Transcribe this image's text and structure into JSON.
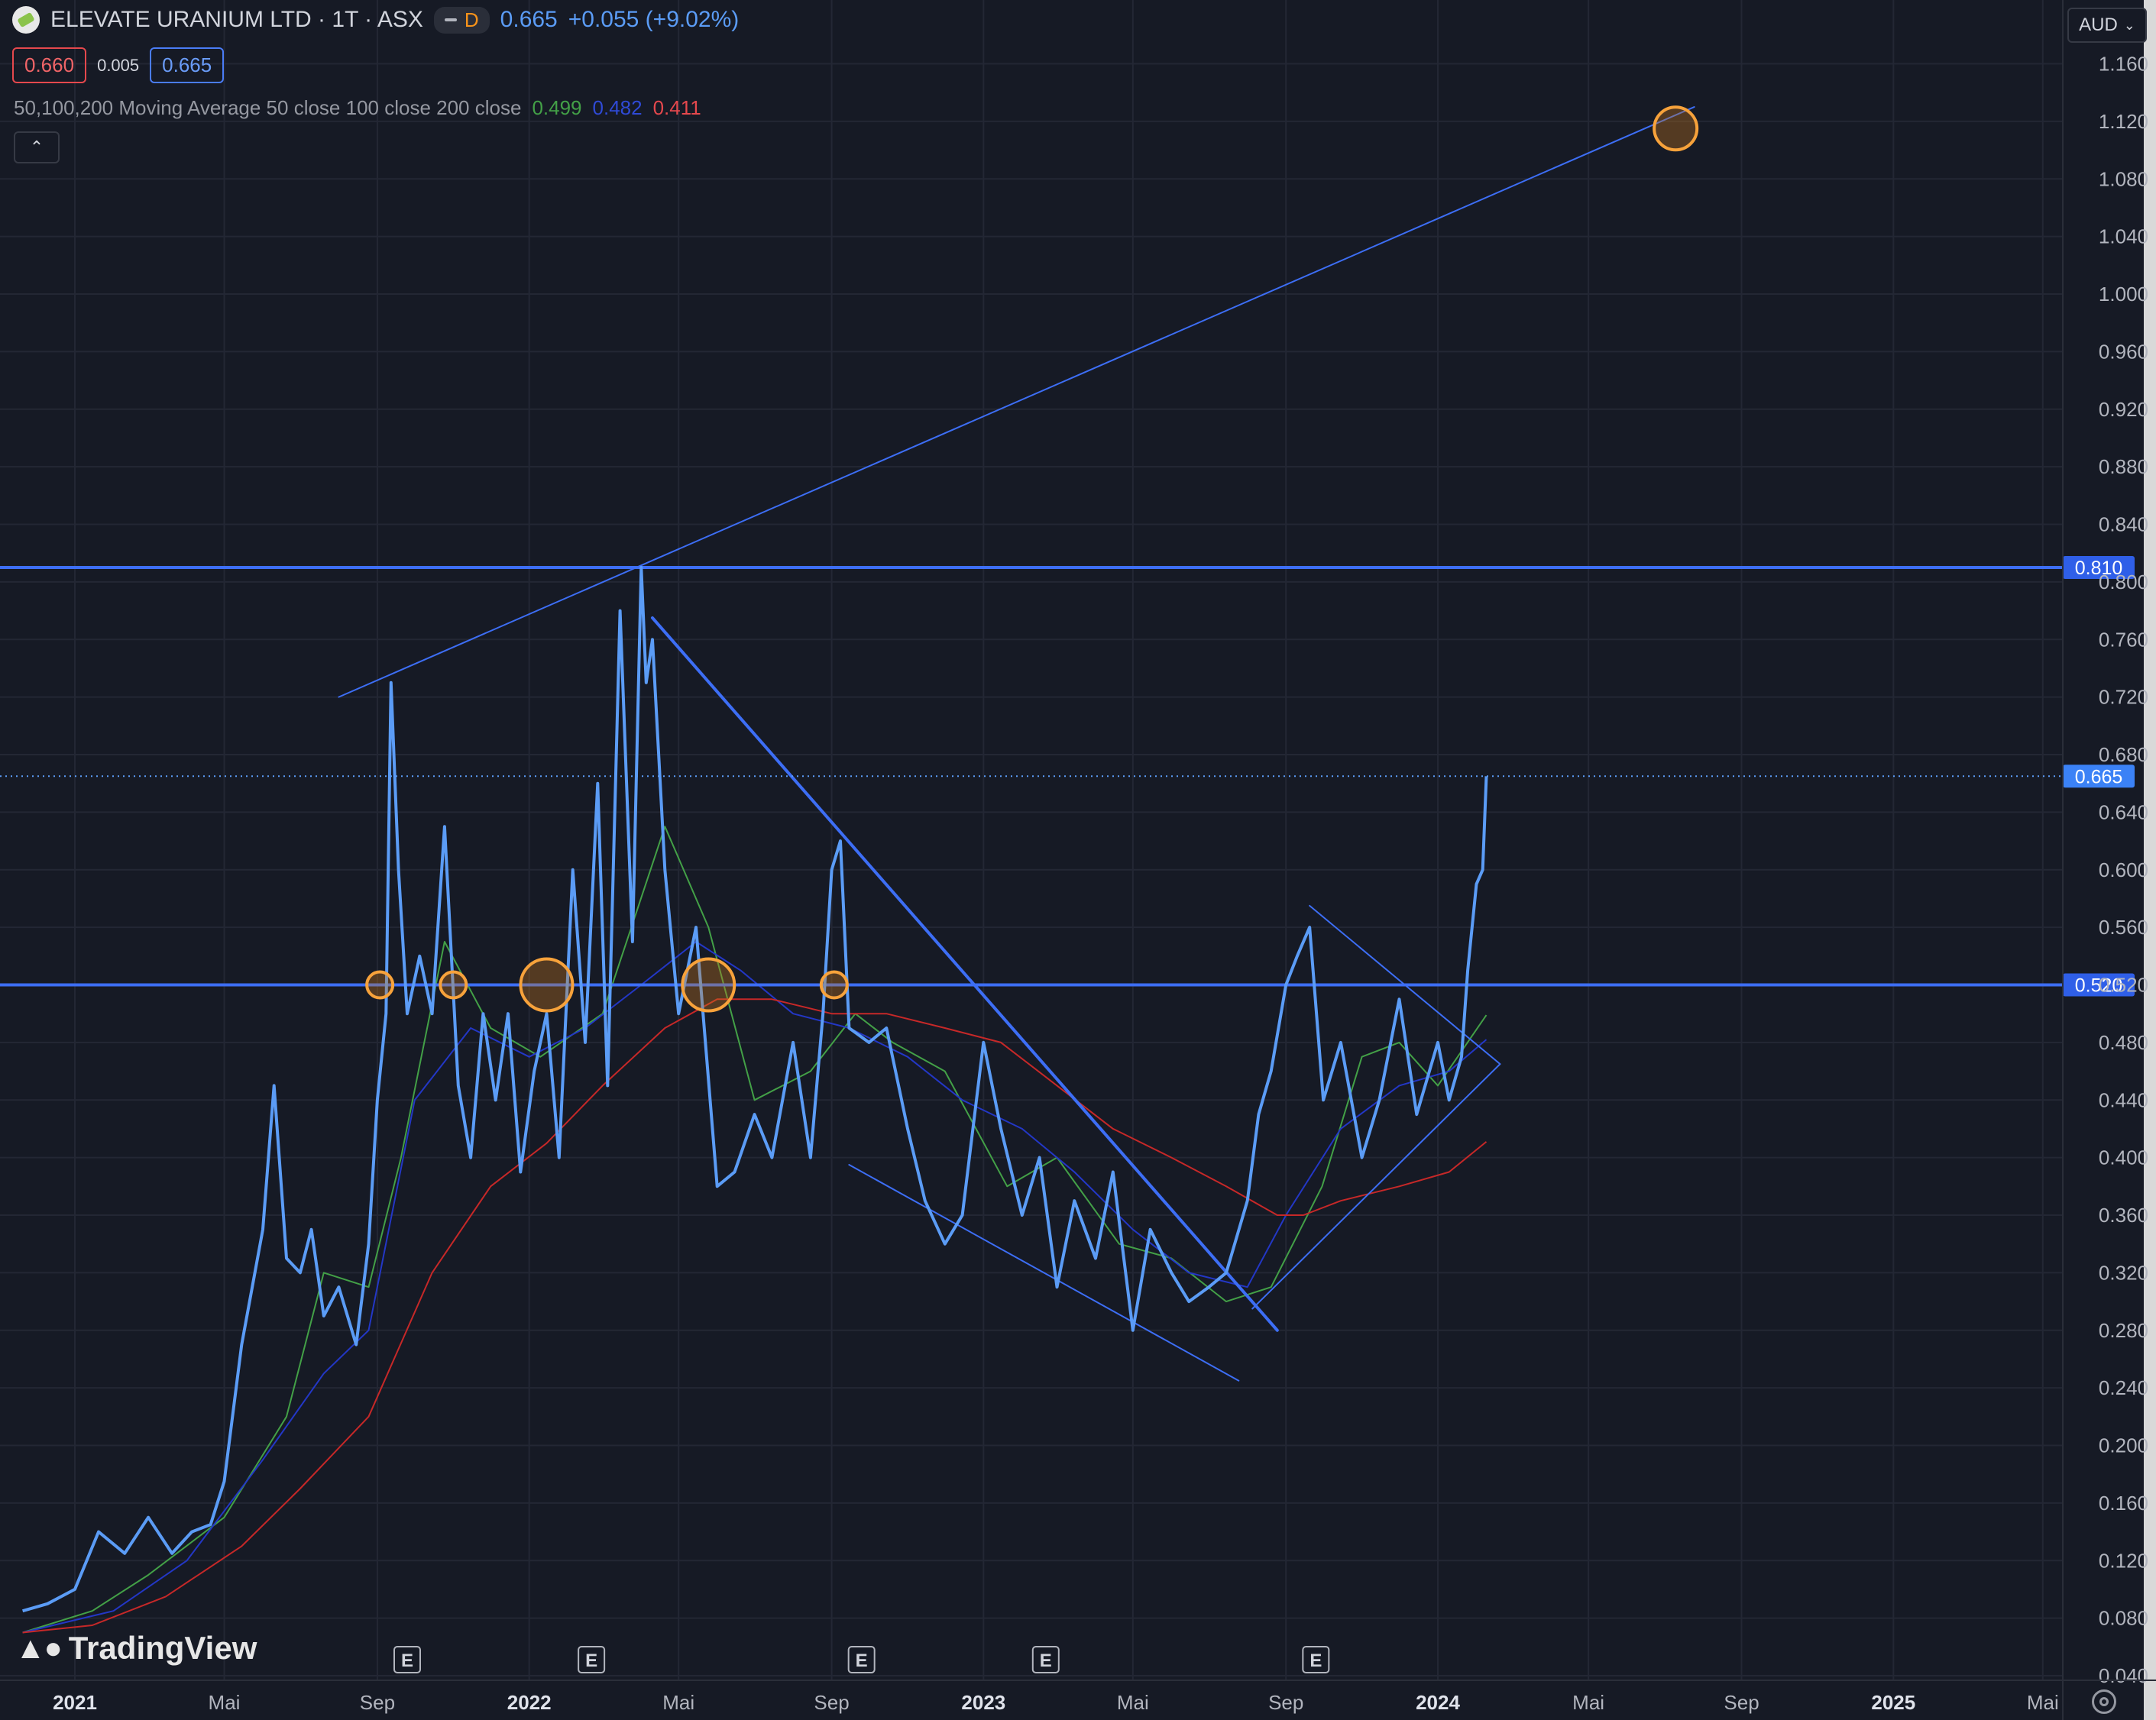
{
  "header": {
    "symbol_title": "ELEVATE URANIUM LTD · 1T · ASX",
    "interval_badge": "D",
    "last_price": "0.665",
    "change": "+0.055 (+9.02%)",
    "bid": "0.660",
    "spread": "0.005",
    "ask": "0.665",
    "collapse_icon": "chevron-up-icon"
  },
  "indicator": {
    "label": "50,100,200 Moving Average 50 close 100 close 200 close",
    "ma50_value": "0.499",
    "ma100_value": "0.482",
    "ma200_value": "0.411",
    "ma50_color": "#43a047",
    "ma100_color": "#2337c6",
    "ma200_color": "#c62828"
  },
  "currency_button": "AUD",
  "brand": "TradingView",
  "colors": {
    "background": "#161a25",
    "price_line": "#5b9cf6",
    "drawing_line": "#3d6ef5",
    "highlight_circle": "#f7a23b"
  },
  "chart_data": {
    "type": "line",
    "ylim": [
      0.04,
      1.16
    ],
    "y_ticks": [
      "0.040",
      "0.080",
      "0.120",
      "0.160",
      "0.200",
      "0.240",
      "0.280",
      "0.320",
      "0.360",
      "0.400",
      "0.440",
      "0.480",
      "0.520",
      "0.560",
      "0.600",
      "0.640",
      "0.680",
      "0.720",
      "0.760",
      "0.800",
      "0.840",
      "0.880",
      "0.920",
      "0.960",
      "1.000",
      "1.040",
      "1.080",
      "1.120",
      "1.160"
    ],
    "x_ticks": [
      {
        "label": "2021",
        "date": "2021-01-01",
        "bold": true
      },
      {
        "label": "Mai",
        "date": "2021-05-01"
      },
      {
        "label": "Sep",
        "date": "2021-09-01"
      },
      {
        "label": "2022",
        "date": "2022-01-01",
        "bold": true
      },
      {
        "label": "Mai",
        "date": "2022-05-01"
      },
      {
        "label": "Sep",
        "date": "2022-09-01"
      },
      {
        "label": "2023",
        "date": "2023-01-01",
        "bold": true
      },
      {
        "label": "Mai",
        "date": "2023-05-01"
      },
      {
        "label": "Sep",
        "date": "2023-09-01"
      },
      {
        "label": "2024",
        "date": "2024-01-01",
        "bold": true
      },
      {
        "label": "Mai",
        "date": "2024-05-01"
      },
      {
        "label": "Sep",
        "date": "2024-09-01"
      },
      {
        "label": "2025",
        "date": "2025-01-01",
        "bold": true
      },
      {
        "label": "Mai",
        "date": "2025-05-01"
      }
    ],
    "earnings_markers": [
      {
        "label": "E",
        "date": "2021-09-25"
      },
      {
        "label": "E",
        "date": "2022-02-20"
      },
      {
        "label": "E",
        "date": "2022-09-25"
      },
      {
        "label": "E",
        "date": "2023-02-20"
      },
      {
        "label": "E",
        "date": "2023-09-25"
      }
    ],
    "horizontal_lines": [
      {
        "value": 0.81,
        "label": "0.810"
      },
      {
        "value": 0.52,
        "label": "0.520"
      }
    ],
    "current_price": {
      "value": 0.665,
      "label": "0.665"
    },
    "series": [
      {
        "key": "price",
        "color": "#5b9cf6",
        "x": [
          "2020-11-20",
          "2020-12-10",
          "2021-01-01",
          "2021-01-20",
          "2021-02-10",
          "2021-03-01",
          "2021-03-20",
          "2021-04-05",
          "2021-04-20",
          "2021-05-01",
          "2021-05-15",
          "2021-06-01",
          "2021-06-10",
          "2021-06-20",
          "2021-07-01",
          "2021-07-10",
          "2021-07-20",
          "2021-08-01",
          "2021-08-15",
          "2021-08-25",
          "2021-09-01",
          "2021-09-08",
          "2021-09-12",
          "2021-09-18",
          "2021-09-25",
          "2021-10-05",
          "2021-10-15",
          "2021-10-25",
          "2021-11-05",
          "2021-11-15",
          "2021-11-25",
          "2021-12-05",
          "2021-12-15",
          "2021-12-25",
          "2022-01-05",
          "2022-01-15",
          "2022-01-25",
          "2022-02-05",
          "2022-02-15",
          "2022-02-25",
          "2022-03-05",
          "2022-03-15",
          "2022-03-25",
          "2022-04-01",
          "2022-04-05",
          "2022-04-10",
          "2022-04-20",
          "2022-05-01",
          "2022-05-15",
          "2022-06-01",
          "2022-06-15",
          "2022-07-01",
          "2022-07-15",
          "2022-08-01",
          "2022-08-15",
          "2022-08-25",
          "2022-09-01",
          "2022-09-08",
          "2022-09-15",
          "2022-10-01",
          "2022-10-15",
          "2022-11-01",
          "2022-11-15",
          "2022-12-01",
          "2022-12-15",
          "2023-01-01",
          "2023-01-15",
          "2023-02-01",
          "2023-02-15",
          "2023-03-01",
          "2023-03-15",
          "2023-04-01",
          "2023-04-15",
          "2023-05-01",
          "2023-05-15",
          "2023-06-01",
          "2023-06-15",
          "2023-07-01",
          "2023-07-15",
          "2023-08-01",
          "2023-08-10",
          "2023-08-20",
          "2023-09-01",
          "2023-09-10",
          "2023-09-20",
          "2023-10-01",
          "2023-10-15",
          "2023-11-01",
          "2023-11-15",
          "2023-12-01",
          "2023-12-15",
          "2024-01-01",
          "2024-01-10",
          "2024-01-20",
          "2024-01-25",
          "2024-02-01",
          "2024-02-06",
          "2024-02-09"
        ],
        "values": [
          0.085,
          0.09,
          0.1,
          0.14,
          0.125,
          0.15,
          0.125,
          0.14,
          0.145,
          0.175,
          0.27,
          0.35,
          0.45,
          0.33,
          0.32,
          0.35,
          0.29,
          0.31,
          0.27,
          0.34,
          0.44,
          0.5,
          0.73,
          0.6,
          0.5,
          0.54,
          0.5,
          0.63,
          0.45,
          0.4,
          0.5,
          0.44,
          0.5,
          0.39,
          0.46,
          0.5,
          0.4,
          0.6,
          0.48,
          0.66,
          0.45,
          0.78,
          0.55,
          0.81,
          0.73,
          0.76,
          0.6,
          0.5,
          0.56,
          0.38,
          0.39,
          0.43,
          0.4,
          0.48,
          0.4,
          0.5,
          0.6,
          0.62,
          0.49,
          0.48,
          0.49,
          0.42,
          0.37,
          0.34,
          0.36,
          0.48,
          0.42,
          0.36,
          0.4,
          0.31,
          0.37,
          0.33,
          0.39,
          0.28,
          0.35,
          0.32,
          0.3,
          0.31,
          0.32,
          0.37,
          0.43,
          0.46,
          0.52,
          0.54,
          0.56,
          0.44,
          0.48,
          0.4,
          0.44,
          0.51,
          0.43,
          0.48,
          0.44,
          0.47,
          0.53,
          0.59,
          0.6,
          0.665
        ]
      },
      {
        "key": "ma50",
        "color": "#43a047",
        "x": [
          "2020-11-20",
          "2021-01-15",
          "2021-03-01",
          "2021-05-01",
          "2021-06-20",
          "2021-07-20",
          "2021-08-25",
          "2021-09-20",
          "2021-10-25",
          "2021-12-01",
          "2022-01-10",
          "2022-03-01",
          "2022-04-20",
          "2022-05-25",
          "2022-07-01",
          "2022-08-15",
          "2022-09-20",
          "2022-10-20",
          "2022-12-01",
          "2023-01-20",
          "2023-03-01",
          "2023-04-20",
          "2023-06-01",
          "2023-07-15",
          "2023-08-20",
          "2023-09-30",
          "2023-11-01",
          "2023-12-01",
          "2024-01-01",
          "2024-02-09"
        ],
        "values": [
          0.07,
          0.085,
          0.11,
          0.15,
          0.22,
          0.32,
          0.31,
          0.4,
          0.55,
          0.49,
          0.47,
          0.5,
          0.63,
          0.56,
          0.44,
          0.46,
          0.5,
          0.48,
          0.46,
          0.38,
          0.4,
          0.34,
          0.33,
          0.3,
          0.31,
          0.38,
          0.47,
          0.48,
          0.45,
          0.499
        ]
      },
      {
        "key": "ma100",
        "color": "#2337c6",
        "x": [
          "2020-11-20",
          "2021-02-01",
          "2021-04-01",
          "2021-06-01",
          "2021-07-20",
          "2021-08-25",
          "2021-10-01",
          "2021-11-15",
          "2022-01-01",
          "2022-02-15",
          "2022-04-01",
          "2022-05-15",
          "2022-06-20",
          "2022-08-01",
          "2022-09-15",
          "2022-11-01",
          "2022-12-15",
          "2023-02-01",
          "2023-03-15",
          "2023-05-01",
          "2023-06-15",
          "2023-08-01",
          "2023-09-01",
          "2023-10-15",
          "2023-12-01",
          "2024-01-10",
          "2024-02-09"
        ],
        "values": [
          0.07,
          0.085,
          0.12,
          0.19,
          0.25,
          0.28,
          0.44,
          0.49,
          0.47,
          0.49,
          0.52,
          0.55,
          0.53,
          0.5,
          0.49,
          0.47,
          0.44,
          0.42,
          0.39,
          0.35,
          0.32,
          0.31,
          0.36,
          0.42,
          0.45,
          0.46,
          0.482
        ]
      },
      {
        "key": "ma200",
        "color": "#c62828",
        "x": [
          "2020-11-20",
          "2021-01-15",
          "2021-03-15",
          "2021-05-15",
          "2021-07-01",
          "2021-08-25",
          "2021-10-15",
          "2021-12-01",
          "2022-01-15",
          "2022-03-01",
          "2022-04-20",
          "2022-06-01",
          "2022-07-15",
          "2022-09-01",
          "2022-10-15",
          "2022-12-01",
          "2023-01-15",
          "2023-03-01",
          "2023-04-15",
          "2023-06-01",
          "2023-07-15",
          "2023-08-25",
          "2023-09-15",
          "2023-10-15",
          "2023-12-01",
          "2024-01-10",
          "2024-02-09"
        ],
        "values": [
          0.07,
          0.075,
          0.095,
          0.13,
          0.17,
          0.22,
          0.32,
          0.38,
          0.41,
          0.45,
          0.49,
          0.51,
          0.51,
          0.5,
          0.5,
          0.49,
          0.48,
          0.45,
          0.42,
          0.4,
          0.38,
          0.36,
          0.36,
          0.37,
          0.38,
          0.39,
          0.411
        ]
      }
    ],
    "trend_lines": [
      {
        "from": {
          "date": "2021-08-01",
          "value": 0.72
        },
        "to": {
          "date": "2024-07-25",
          "value": 1.13
        },
        "color": "#3d6ef5",
        "width": 2
      },
      {
        "from": {
          "date": "2022-04-10",
          "value": 0.775
        },
        "to": {
          "date": "2023-08-25",
          "value": 0.28
        },
        "color": "#3d6ef5",
        "width": 4
      },
      {
        "from": {
          "date": "2022-09-15",
          "value": 0.395
        },
        "to": {
          "date": "2023-07-25",
          "value": 0.245
        },
        "color": "#3d6ef5",
        "width": 2
      },
      {
        "from": {
          "date": "2023-09-20",
          "value": 0.575
        },
        "to": {
          "date": "2024-02-20",
          "value": 0.465
        },
        "color": "#3d6ef5",
        "width": 2
      },
      {
        "from": {
          "date": "2023-08-05",
          "value": 0.295
        },
        "to": {
          "date": "2024-02-20",
          "value": 0.465
        },
        "color": "#3d6ef5",
        "width": 2
      }
    ],
    "highlight_circles": [
      {
        "date": "2021-09-03",
        "value": 0.52,
        "size": "small"
      },
      {
        "date": "2021-11-01",
        "value": 0.52,
        "size": "small"
      },
      {
        "date": "2022-01-15",
        "value": 0.52,
        "size": "large"
      },
      {
        "date": "2022-05-25",
        "value": 0.52,
        "size": "large"
      },
      {
        "date": "2022-09-03",
        "value": 0.52,
        "size": "small"
      },
      {
        "date": "2024-07-10",
        "value": 1.115,
        "size": "medium"
      }
    ],
    "grid": true
  }
}
